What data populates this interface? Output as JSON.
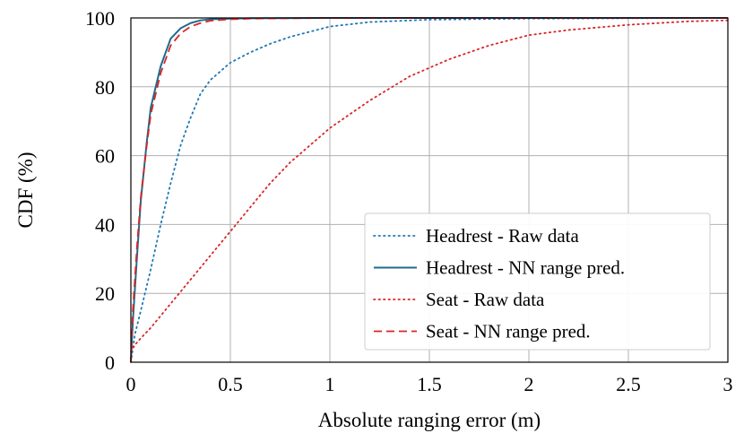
{
  "chart_data": {
    "type": "line",
    "xlabel": "Absolute ranging error (m)",
    "ylabel": "CDF (%)",
    "xlim": [
      0,
      3
    ],
    "ylim": [
      0,
      100
    ],
    "xticks": [
      0,
      0.5,
      1,
      1.5,
      2,
      2.5,
      3
    ],
    "xtick_labels": [
      "0",
      "0.5",
      "1",
      "1.5",
      "2",
      "2.5",
      "3"
    ],
    "yticks": [
      0,
      20,
      40,
      60,
      80,
      100
    ],
    "ytick_labels": [
      "0",
      "20",
      "40",
      "60",
      "80",
      "100"
    ],
    "grid": true,
    "legend_position": "bottom-right",
    "series": [
      {
        "name": "Headrest - Raw data",
        "color": "#1f77b4",
        "line_style": "dotted",
        "x": [
          0,
          0.02,
          0.05,
          0.1,
          0.15,
          0.2,
          0.25,
          0.3,
          0.35,
          0.4,
          0.5,
          0.6,
          0.7,
          0.8,
          1.0,
          1.2,
          1.5,
          2.0,
          2.5,
          3.0
        ],
        "y": [
          0,
          8,
          15,
          27,
          40,
          52,
          63,
          71,
          78,
          82,
          87,
          90,
          92.5,
          94.5,
          97.5,
          98.8,
          99.5,
          99.8,
          99.9,
          100
        ]
      },
      {
        "name": "Headrest - NN range pred.",
        "color": "#1f6b8f",
        "line_style": "solid",
        "x": [
          0,
          0.01,
          0.03,
          0.05,
          0.08,
          0.1,
          0.15,
          0.2,
          0.25,
          0.3,
          0.35,
          0.4,
          0.5,
          0.6,
          1.0,
          2.0,
          3.0
        ],
        "y": [
          0,
          12,
          30,
          47,
          64,
          74,
          86,
          94,
          97,
          98.5,
          99.3,
          99.6,
          99.8,
          99.9,
          100,
          100,
          100
        ]
      },
      {
        "name": "Seat - Raw data",
        "color": "#d62728",
        "line_style": "dotted",
        "x": [
          0,
          0.02,
          0.05,
          0.1,
          0.2,
          0.3,
          0.4,
          0.5,
          0.6,
          0.7,
          0.8,
          0.9,
          1.0,
          1.2,
          1.4,
          1.6,
          1.8,
          2.0,
          2.2,
          2.5,
          2.8,
          3.0
        ],
        "y": [
          3,
          5,
          7,
          10,
          17,
          24,
          31,
          38,
          45,
          52,
          58,
          63,
          68,
          76,
          83,
          88,
          92,
          95,
          96.5,
          98,
          99,
          99.3
        ]
      },
      {
        "name": "Seat - NN range pred.",
        "color": "#d62728",
        "line_style": "dashed",
        "x": [
          0,
          0.01,
          0.03,
          0.05,
          0.08,
          0.1,
          0.15,
          0.2,
          0.25,
          0.3,
          0.35,
          0.4,
          0.5,
          0.6,
          1.0,
          2.0,
          3.0
        ],
        "y": [
          0,
          15,
          33,
          48,
          63,
          72,
          84,
          92,
          95.5,
          97.5,
          98.5,
          99.2,
          99.6,
          99.8,
          100,
          100,
          100
        ]
      }
    ]
  }
}
